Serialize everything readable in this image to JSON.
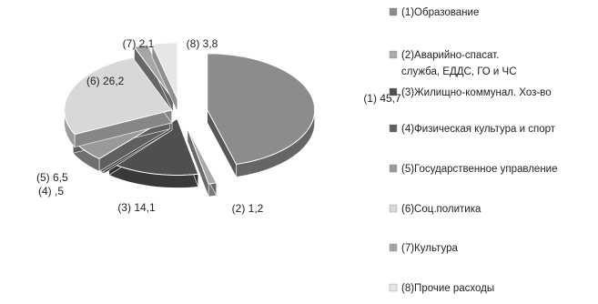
{
  "chart_data": {
    "type": "pie",
    "style": "exploded-3d",
    "title": "",
    "legend_position": "right",
    "categories": [
      "(1)Образование",
      "(2)Аварийно-спасат. служба, ЕДДС, ГО и ЧС",
      "(3)Жилищно-коммунал. Хоз-во",
      "(4)Физическая культура и спорт",
      "(5)Государственное управление",
      "(6)Соц.политика",
      "(7)Культура",
      "(8)Прочие расходы"
    ],
    "legend_lines": [
      [
        "(1)Образование"
      ],
      [
        "(2)Аварийно-спасат.",
        "служба, ЕДДС, ГО и ЧС"
      ],
      [
        "(3)Жилищно-коммунал. Хоз-во"
      ],
      [
        "(4)Физическая культура и спорт"
      ],
      [
        "(5)Государственное управление"
      ],
      [
        "(6)Соц.политика"
      ],
      [
        "(7)Культура"
      ],
      [
        "(8)Прочие расходы"
      ]
    ],
    "values": [
      45.7,
      1.2,
      14.1,
      0.5,
      6.5,
      26.2,
      2.1,
      3.8
    ],
    "data_labels": [
      "(1) 45,7",
      "(2) 1,2",
      "(3) 14,1",
      "(4) ,5",
      "(5) 6,5",
      "(6) 26,2",
      "(7) 2,1",
      "(8) 3,8"
    ],
    "colors": [
      "#8c8c8c",
      "#a9a9a9",
      "#4f4f4f",
      "#5f5f5f",
      "#9a9a9a",
      "#d8d8d8",
      "#a5a5a5",
      "#e6e6e6"
    ]
  }
}
